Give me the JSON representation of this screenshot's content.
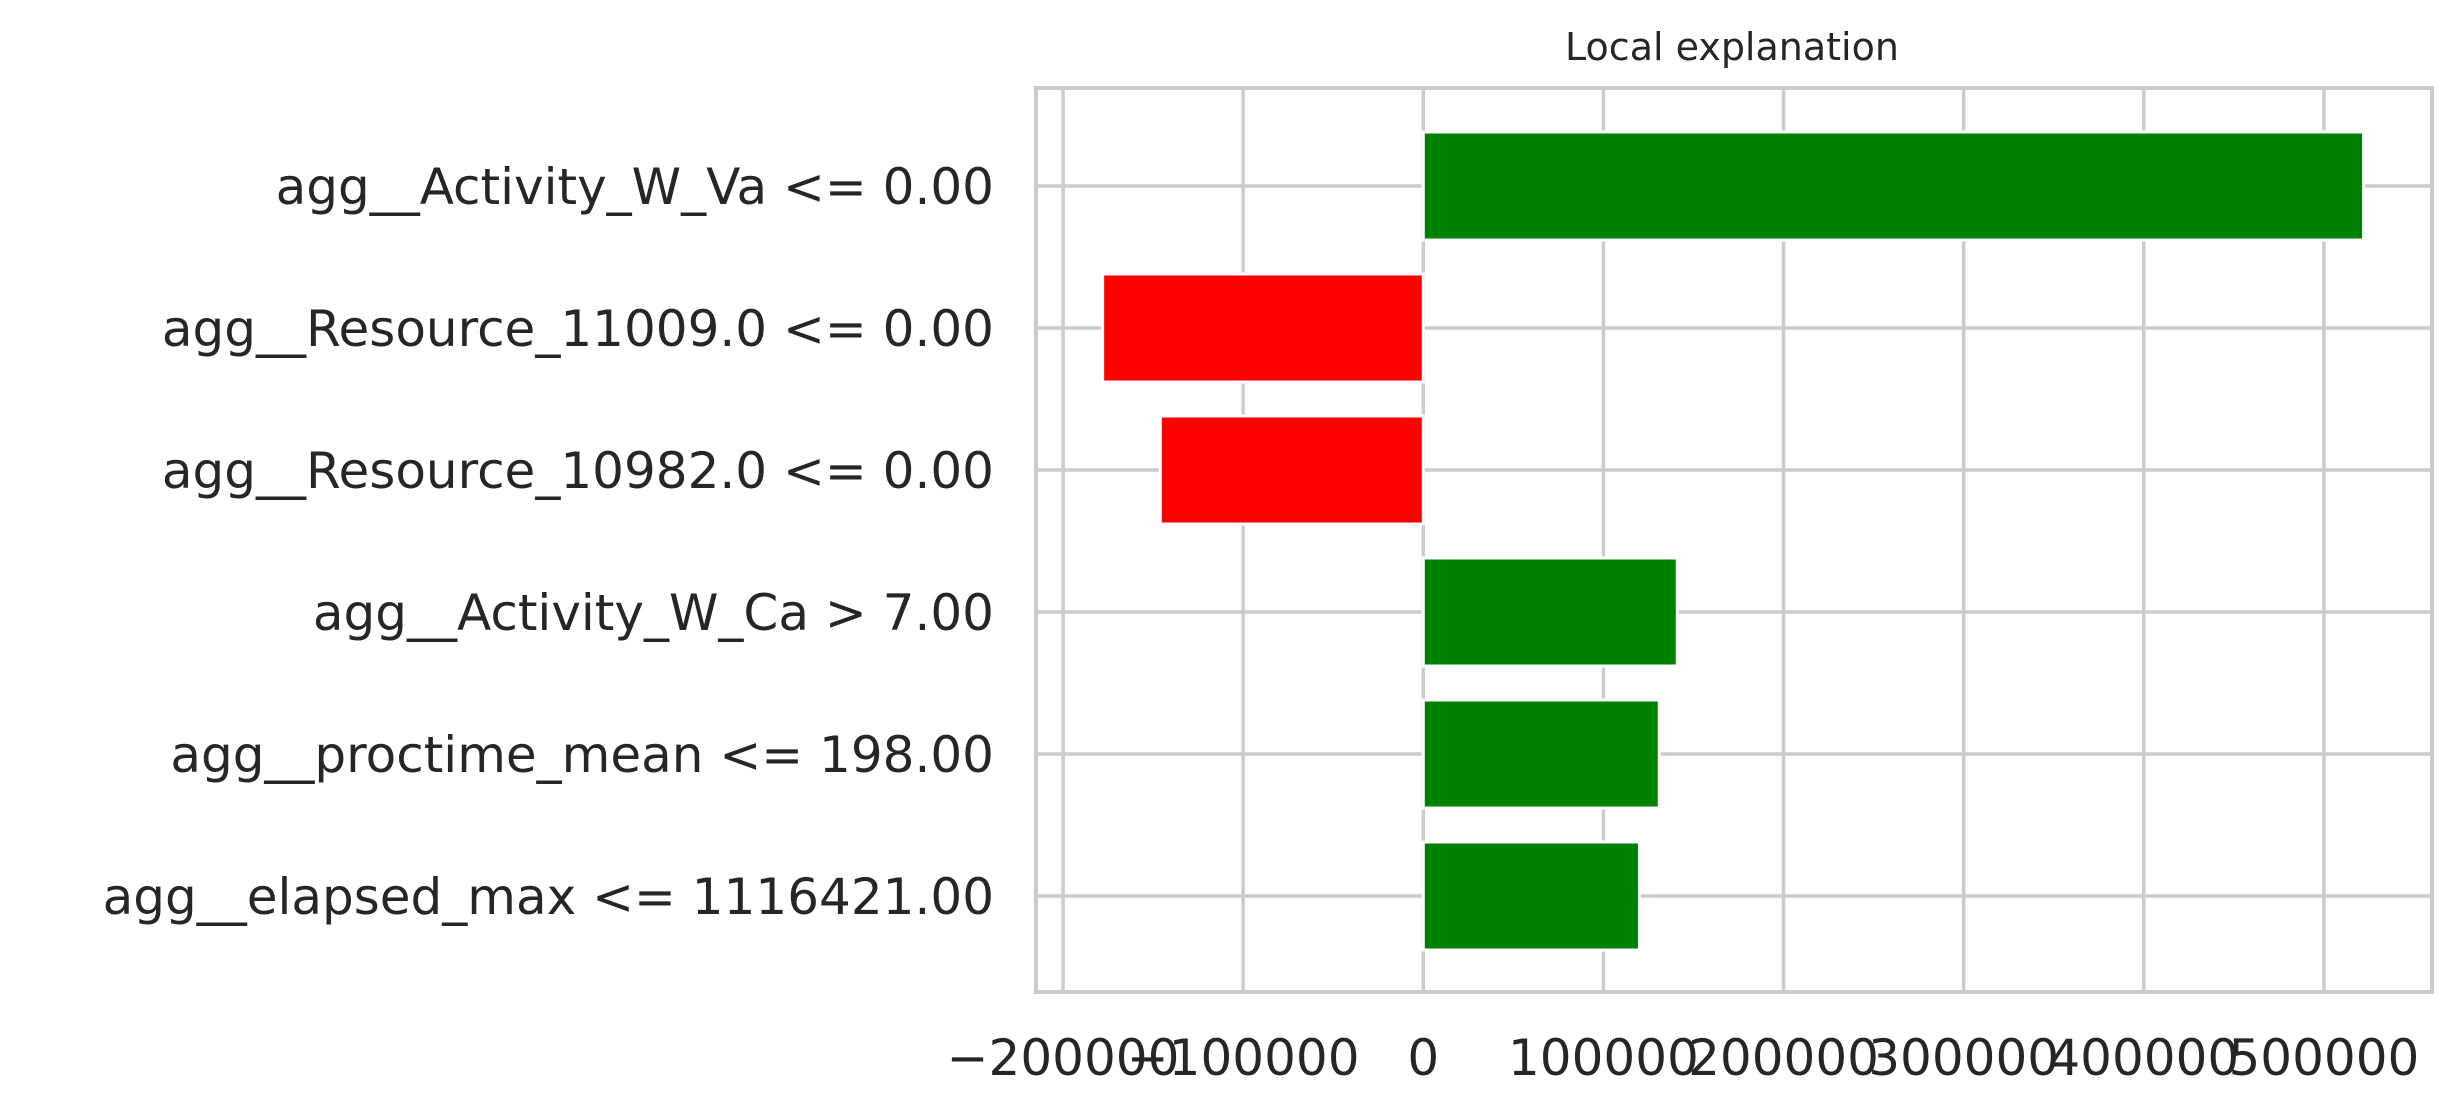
{
  "chart_data": {
    "type": "bar",
    "orientation": "horizontal",
    "title": "Local explanation",
    "xlabel": "",
    "ylabel": "",
    "categories": [
      "agg__Activity_W_Va <= 0.00",
      "agg__Resource_11009.0 <= 0.00",
      "agg__Resource_10982.0 <= 0.00",
      "agg__Activity_W_Ca > 7.00",
      "agg__proctime_mean <= 198.00",
      "agg__elapsed_max <= 1116421.00"
    ],
    "values": [
      522000,
      -178000,
      -146000,
      141000,
      131000,
      120000
    ],
    "xlim": [
      -215000,
      560000
    ],
    "xticks": [
      -200000,
      -100000,
      0,
      100000,
      200000,
      300000,
      400000,
      500000
    ],
    "xtick_labels": [
      "−200000",
      "−100000",
      "0",
      "100000",
      "200000",
      "300000",
      "400000",
      "500000"
    ],
    "grid": true,
    "colors": {
      "positive": "#008000",
      "negative": "#ff0000",
      "grid": "#cccccc",
      "text": "#262626"
    }
  }
}
